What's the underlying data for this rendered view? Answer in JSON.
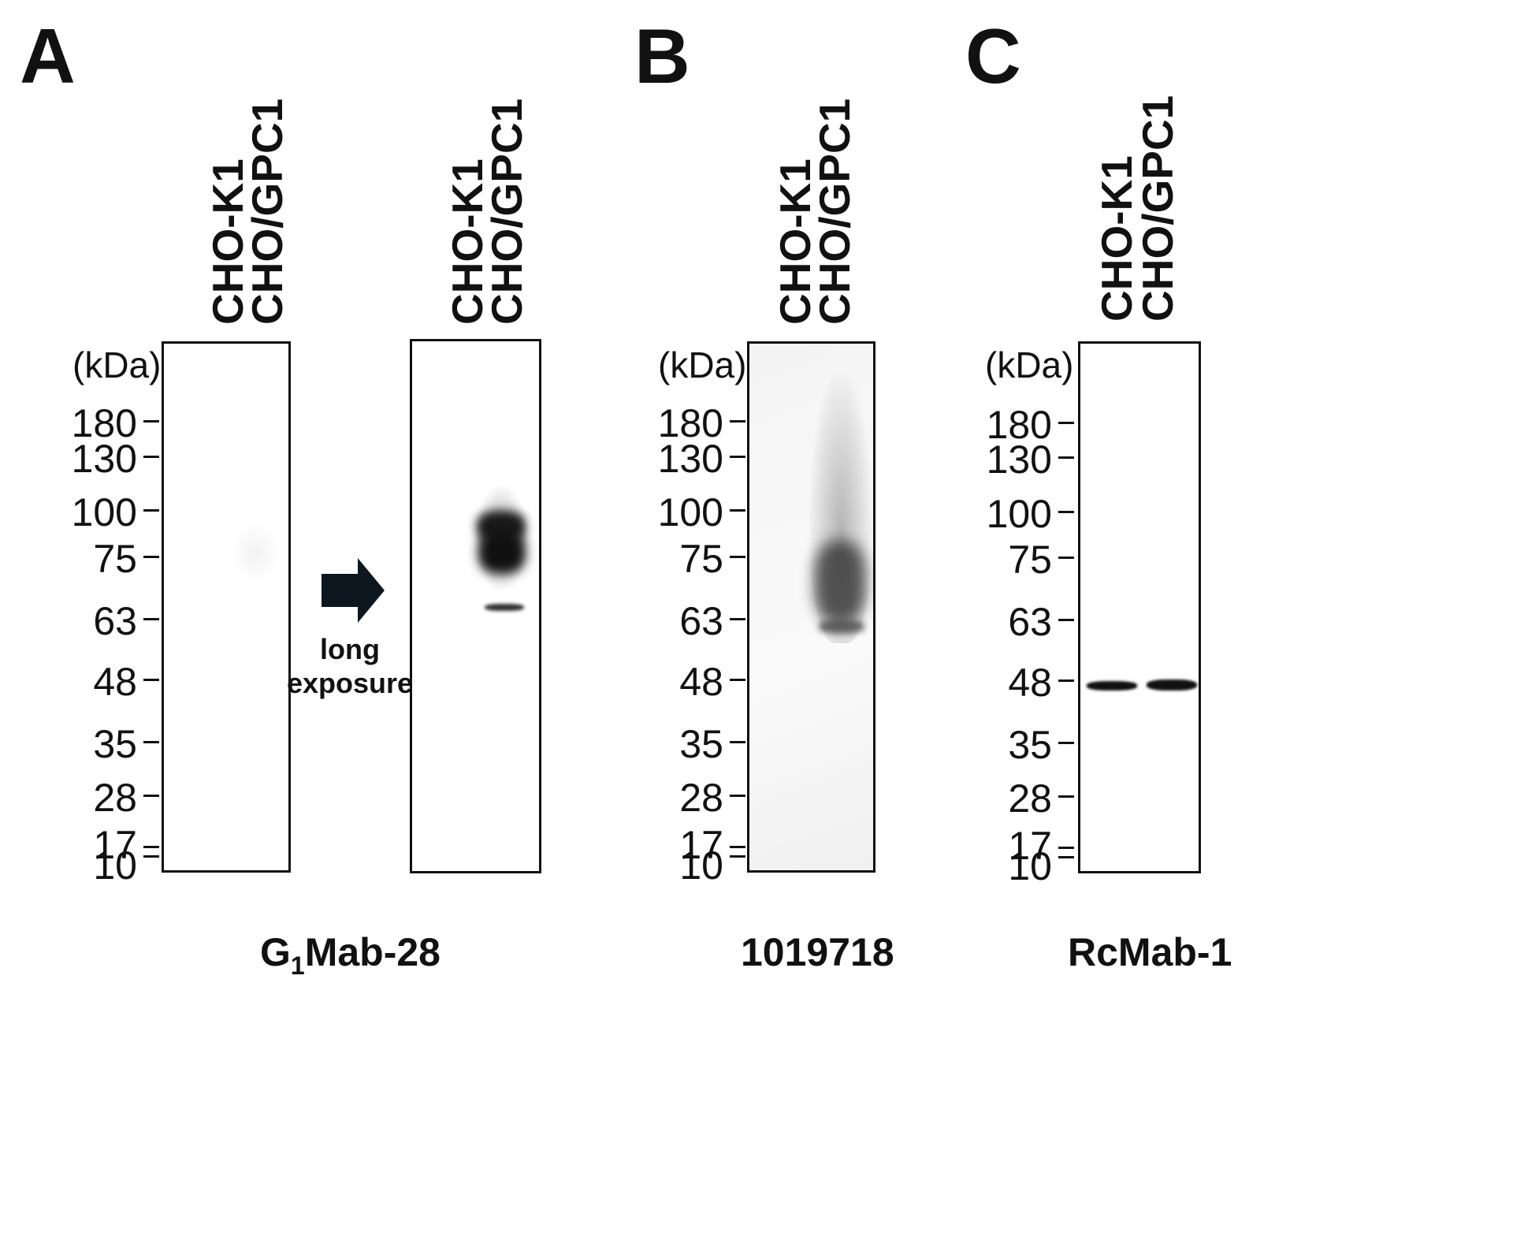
{
  "panels": {
    "a": {
      "letter": "A",
      "unit": "(kDa)",
      "lanes": [
        "CHO-K1",
        "CHO/GPC1"
      ],
      "lanes_long": [
        "CHO-K1",
        "CHO/GPC1"
      ],
      "arrow_text": [
        "long",
        "exposure"
      ],
      "caption_prefix": "G",
      "caption_sub": "1",
      "caption_suffix": "Mab-28"
    },
    "b": {
      "letter": "B",
      "unit": "(kDa)",
      "lanes": [
        "CHO-K1",
        "CHO/GPC1"
      ],
      "caption": "1019718"
    },
    "c": {
      "letter": "C",
      "unit": "(kDa)",
      "lanes": [
        "CHO-K1",
        "CHO/GPC1"
      ],
      "caption": "RcMab-1"
    }
  },
  "markers": [
    "180",
    "130",
    "100",
    "75",
    "63",
    "48",
    "35",
    "28",
    "17",
    "10"
  ]
}
